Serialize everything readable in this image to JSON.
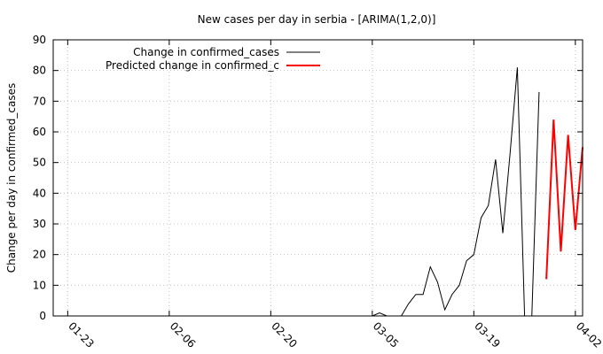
{
  "chart_data": {
    "type": "line",
    "title": "New cases per day in serbia -  [ARIMA(1,2,0)]",
    "xlabel": "",
    "ylabel": "Change per day in confirmed_cases",
    "ylim": [
      0,
      90
    ],
    "yticks": [
      0,
      10,
      20,
      30,
      40,
      50,
      60,
      70,
      80,
      90
    ],
    "xlim": [
      "2020-01-21",
      "2020-04-03"
    ],
    "xticks": [
      {
        "date": "2020-01-23",
        "label": "01-23"
      },
      {
        "date": "2020-02-06",
        "label": "02-06"
      },
      {
        "date": "2020-02-20",
        "label": "02-20"
      },
      {
        "date": "2020-03-05",
        "label": "03-05"
      },
      {
        "date": "2020-03-19",
        "label": "03-19"
      },
      {
        "date": "2020-04-02",
        "label": "04-02"
      }
    ],
    "grid": true,
    "legend_position": "top-left",
    "series": [
      {
        "name": "Change in confirmed_cases",
        "color": "#000000",
        "x": [
          "2020-03-05",
          "2020-03-06",
          "2020-03-07",
          "2020-03-08",
          "2020-03-09",
          "2020-03-10",
          "2020-03-11",
          "2020-03-12",
          "2020-03-13",
          "2020-03-14",
          "2020-03-15",
          "2020-03-16",
          "2020-03-17",
          "2020-03-18",
          "2020-03-19",
          "2020-03-20",
          "2020-03-21",
          "2020-03-22",
          "2020-03-23",
          "2020-03-24",
          "2020-03-25",
          "2020-03-26",
          "2020-03-27",
          "2020-03-28"
        ],
        "y": [
          0,
          1,
          0,
          0,
          0,
          4,
          7,
          7,
          16,
          11,
          2,
          7,
          10,
          18,
          20,
          32,
          36,
          51,
          27,
          53,
          81,
          0,
          0,
          73
        ]
      },
      {
        "name": "Predicted change in confirmed_c",
        "color": "#ff0000",
        "x": [
          "2020-03-29",
          "2020-03-30",
          "2020-03-31",
          "2020-04-01",
          "2020-04-02",
          "2020-04-03"
        ],
        "y": [
          12,
          64,
          21,
          59,
          28,
          55
        ]
      }
    ]
  }
}
